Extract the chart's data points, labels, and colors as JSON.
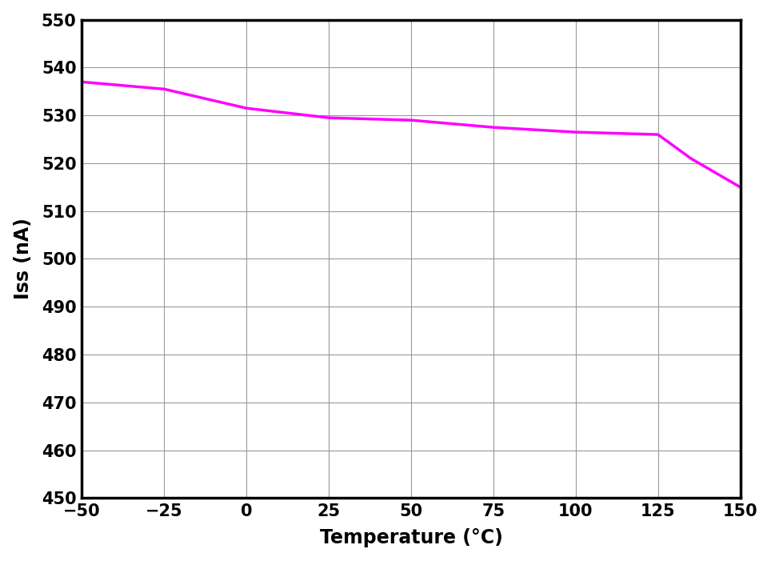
{
  "x": [
    -50,
    -25,
    0,
    25,
    50,
    75,
    100,
    125,
    135,
    150
  ],
  "y": [
    537,
    535.5,
    531.5,
    529.5,
    529.0,
    527.5,
    526.5,
    526.0,
    521.0,
    515.0
  ],
  "line_color": "#FF00FF",
  "line_width": 2.5,
  "xlabel": "Temperature (°C)",
  "ylabel": "Iss (nA)",
  "xlim": [
    -50,
    150
  ],
  "ylim": [
    450,
    550
  ],
  "xticks": [
    -50,
    -25,
    0,
    25,
    50,
    75,
    100,
    125,
    150
  ],
  "yticks": [
    450,
    460,
    470,
    480,
    490,
    500,
    510,
    520,
    530,
    540,
    550
  ],
  "grid_color": "#999999",
  "background_color": "#ffffff",
  "tick_fontsize": 15,
  "label_fontsize": 17,
  "spine_linewidth": 2.5
}
